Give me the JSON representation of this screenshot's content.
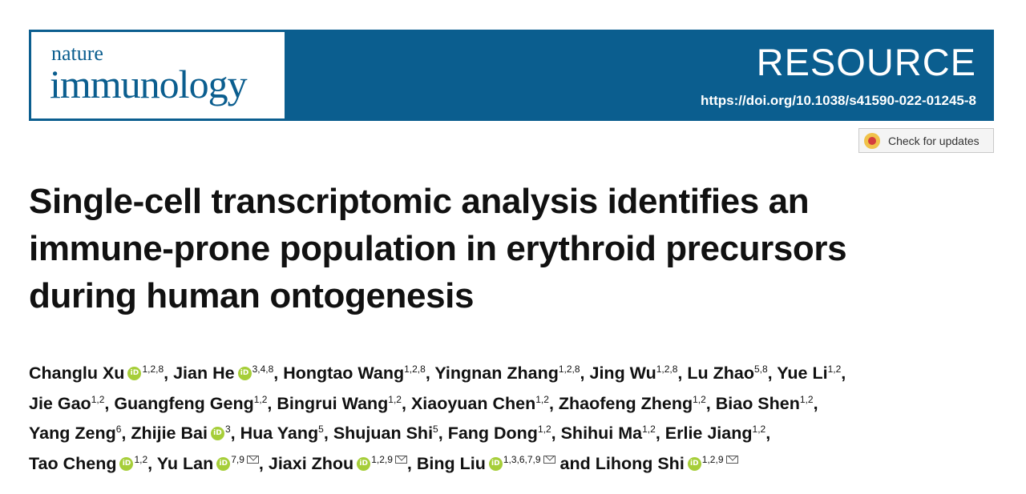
{
  "journal": {
    "name_top": "nature",
    "name_bottom": "immunology",
    "article_type": "RESOURCE",
    "doi": "https://doi.org/10.1038/s41590-022-01245-8"
  },
  "check_updates": {
    "label": "Check for updates",
    "icon": "crossmark-icon"
  },
  "title_lines": [
    "Single-cell transcriptomic analysis identifies an",
    "immune-prone population in erythroid precursors",
    "during human ontogenesis"
  ],
  "author_lines": [
    [
      {
        "name": "Changlu Xu",
        "orcid": true,
        "aff": "1,2,8",
        "mail": false
      },
      {
        "name": "Jian He",
        "orcid": true,
        "aff": "3,4,8",
        "mail": false
      },
      {
        "name": "Hongtao Wang",
        "orcid": false,
        "aff": "1,2,8",
        "mail": false
      },
      {
        "name": "Yingnan Zhang",
        "orcid": false,
        "aff": "1,2,8",
        "mail": false
      },
      {
        "name": "Jing Wu",
        "orcid": false,
        "aff": "1,2,8",
        "mail": false
      },
      {
        "name": "Lu Zhao",
        "orcid": false,
        "aff": "5,8",
        "mail": false
      },
      {
        "name": "Yue Li",
        "orcid": false,
        "aff": "1,2",
        "mail": false
      }
    ],
    [
      {
        "name": "Jie Gao",
        "orcid": false,
        "aff": "1,2",
        "mail": false
      },
      {
        "name": "Guangfeng Geng",
        "orcid": false,
        "aff": "1,2",
        "mail": false
      },
      {
        "name": "Bingrui Wang",
        "orcid": false,
        "aff": "1,2",
        "mail": false
      },
      {
        "name": "Xiaoyuan Chen",
        "orcid": false,
        "aff": "1,2",
        "mail": false
      },
      {
        "name": "Zhaofeng Zheng",
        "orcid": false,
        "aff": "1,2",
        "mail": false
      },
      {
        "name": "Biao Shen",
        "orcid": false,
        "aff": "1,2",
        "mail": false
      }
    ],
    [
      {
        "name": "Yang Zeng",
        "orcid": false,
        "aff": "6",
        "mail": false
      },
      {
        "name": "Zhijie Bai",
        "orcid": true,
        "aff": "3",
        "mail": false
      },
      {
        "name": "Hua Yang",
        "orcid": false,
        "aff": "5",
        "mail": false
      },
      {
        "name": "Shujuan Shi",
        "orcid": false,
        "aff": "5",
        "mail": false
      },
      {
        "name": "Fang Dong",
        "orcid": false,
        "aff": "1,2",
        "mail": false
      },
      {
        "name": "Shihui Ma",
        "orcid": false,
        "aff": "1,2",
        "mail": false
      },
      {
        "name": "Erlie Jiang",
        "orcid": false,
        "aff": "1,2",
        "mail": false
      }
    ],
    [
      {
        "name": "Tao Cheng",
        "orcid": true,
        "aff": "1,2",
        "mail": false
      },
      {
        "name": "Yu Lan",
        "orcid": true,
        "aff": "7,9",
        "mail": true
      },
      {
        "name": "Jiaxi Zhou",
        "orcid": true,
        "aff": "1,2,9",
        "mail": true
      },
      {
        "name": "Bing Liu",
        "orcid": true,
        "aff": "1,3,6,7,9",
        "mail": true
      },
      {
        "name": "Lihong Shi",
        "orcid": true,
        "aff": "1,2,9",
        "mail": true
      }
    ]
  ],
  "separators": {
    "comma": ",",
    "final_conjunction": "and"
  },
  "colors": {
    "banner": "#0b5e8f",
    "orcid": "#a6ce39",
    "text": "#111111"
  }
}
